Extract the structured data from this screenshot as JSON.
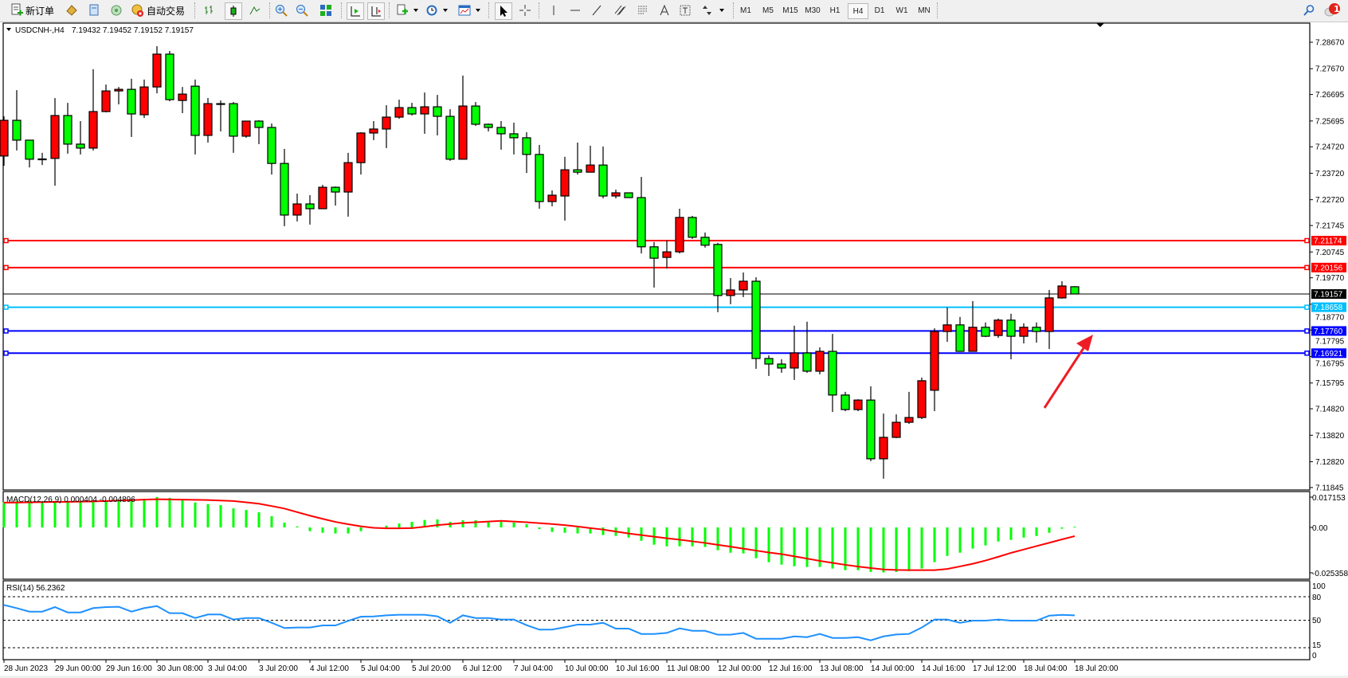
{
  "toolbar": {
    "new_order_label": "新订单",
    "auto_trading_label": "自动交易",
    "timeframes": [
      "M1",
      "M5",
      "M15",
      "M30",
      "H1",
      "H4",
      "D1",
      "W1",
      "MN"
    ],
    "active_timeframe": "H4",
    "notification_count": "1",
    "icons": [
      "new-order-icon",
      "market-watch-icon",
      "data-window-icon",
      "navigator-icon",
      "auto-trading-icon",
      "bar-chart-icon",
      "candlestick-icon",
      "line-chart-icon",
      "zoom-in-icon",
      "zoom-out-icon",
      "tile-windows-icon",
      "autoscroll-icon",
      "chart-shift-icon",
      "indicators-icon",
      "periods-icon",
      "templates-icon",
      "cursor-icon",
      "crosshair-icon",
      "vertical-line-icon",
      "horizontal-line-icon",
      "trendline-icon",
      "equidistant-channel-icon",
      "fibonacci-icon",
      "text-icon",
      "text-label-icon",
      "arrows-icon",
      "search-icon",
      "notification-icon"
    ]
  },
  "chart": {
    "symbol_header": "USDCNH-,H4",
    "ohlc_header": "7.19432 7.19452 7.19152 7.19157",
    "colors": {
      "bull": "#ff0000",
      "bear": "#00ff00",
      "macd_hist": "#00ff00",
      "macd_signal": "#ff0000",
      "rsi": "#1e90ff",
      "arrow": "#ee1c25"
    },
    "price_ticks": [
      "7.28670",
      "7.27670",
      "7.26695",
      "7.25695",
      "7.24720",
      "7.23720",
      "7.22720",
      "7.21745",
      "7.20745",
      "7.19770",
      "7.18770",
      "7.17795",
      "7.16795",
      "7.15795",
      "7.14820",
      "7.13820",
      "7.12820",
      "7.11845"
    ],
    "horizontal_lines": [
      {
        "price": "7.21174",
        "color": "#ff0000"
      },
      {
        "price": "7.20156",
        "color": "#ff0000"
      },
      {
        "price": "7.19157",
        "color": "#000000",
        "bid": true
      },
      {
        "price": "7.18658",
        "color": "#00bfff"
      },
      {
        "price": "7.17760",
        "color": "#0000ff"
      },
      {
        "price": "7.16921",
        "color": "#0000ff"
      }
    ],
    "time_labels": [
      "28 Jun 2023",
      "29 Jun 00:00",
      "29 Jun 16:00",
      "30 Jun 08:00",
      "3 Jul 04:00",
      "3 Jul 20:00",
      "4 Jul 12:00",
      "5 Jul 04:00",
      "5 Jul 20:00",
      "6 Jul 12:00",
      "7 Jul 04:00",
      "10 Jul 00:00",
      "10 Jul 16:00",
      "11 Jul 08:00",
      "12 Jul 00:00",
      "12 Jul 16:00",
      "13 Jul 08:00",
      "14 Jul 00:00",
      "14 Jul 16:00",
      "17 Jul 12:00",
      "18 Jul 04:00",
      "18 Jul 20:00"
    ]
  },
  "chart_data": [
    {
      "type": "candlestick",
      "title": "USDCNH-,H4",
      "timeframe": "H4",
      "last_bar_time": "18 Jul 20:00",
      "ylim": [
        7.11845,
        7.2867
      ],
      "ohlc": [
        [
          7.2437,
          7.2587,
          7.24,
          7.2572
        ],
        [
          7.2572,
          7.2686,
          7.2458,
          7.2497
        ],
        [
          7.2497,
          7.2497,
          7.2394,
          7.2425
        ],
        [
          7.2425,
          7.2449,
          7.2403,
          7.2426
        ],
        [
          7.2428,
          7.2656,
          7.2325,
          7.259
        ],
        [
          7.259,
          7.2638,
          7.2446,
          7.2482
        ],
        [
          7.2482,
          7.2569,
          7.2443,
          7.2467
        ],
        [
          7.2467,
          7.2765,
          7.2458,
          7.2605
        ],
        [
          7.2605,
          7.2707,
          7.2602,
          7.2683
        ],
        [
          7.2683,
          7.2698,
          7.2632,
          7.2689
        ],
        [
          7.2689,
          7.2729,
          7.2509,
          7.2596
        ],
        [
          7.2593,
          7.2726,
          7.2581,
          7.2698
        ],
        [
          7.2698,
          7.2852,
          7.2674,
          7.2822
        ],
        [
          7.2822,
          7.2834,
          7.2644,
          7.265
        ],
        [
          7.2647,
          7.2698,
          7.2599,
          7.2671
        ],
        [
          7.2701,
          7.2726,
          7.2443,
          7.2515
        ],
        [
          7.2515,
          7.2656,
          7.2488,
          7.2635
        ],
        [
          7.2635,
          7.2647,
          7.253,
          7.2635
        ],
        [
          7.2635,
          7.2641,
          7.2449,
          7.2512
        ],
        [
          7.2512,
          7.2569,
          7.2506,
          7.2569
        ],
        [
          7.2569,
          7.2572,
          7.2482,
          7.2545
        ],
        [
          7.2545,
          7.256,
          7.2367,
          7.2409
        ],
        [
          7.2409,
          7.2464,
          7.2172,
          7.2214
        ],
        [
          7.2214,
          7.2295,
          7.219,
          7.2256
        ],
        [
          7.2256,
          7.2289,
          7.2178,
          7.2238
        ],
        [
          7.2238,
          7.2328,
          7.2238,
          7.2319
        ],
        [
          7.2319,
          7.2322,
          7.225,
          7.2301
        ],
        [
          7.2301,
          7.2449,
          7.2208,
          7.2412
        ],
        [
          7.2412,
          7.2527,
          7.2367,
          7.2524
        ],
        [
          7.2524,
          7.2569,
          7.2497,
          7.2539
        ],
        [
          7.2539,
          7.2629,
          7.2467,
          7.2584
        ],
        [
          7.2584,
          7.265,
          7.2578,
          7.262
        ],
        [
          7.262,
          7.2638,
          7.259,
          7.2596
        ],
        [
          7.2596,
          7.2677,
          7.2521,
          7.2623
        ],
        [
          7.2623,
          7.2668,
          7.2515,
          7.2587
        ],
        [
          7.2587,
          7.2614,
          7.2419,
          7.2425
        ],
        [
          7.2425,
          7.2741,
          7.2425,
          7.2626
        ],
        [
          7.2626,
          7.2641,
          7.2551,
          7.2557
        ],
        [
          7.2557,
          7.256,
          7.253,
          7.2545
        ],
        [
          7.2545,
          7.2569,
          7.2461,
          7.2521
        ],
        [
          7.2521,
          7.2563,
          7.2443,
          7.2506
        ],
        [
          7.2506,
          7.2527,
          7.2373,
          7.2443
        ],
        [
          7.2443,
          7.2479,
          7.2238,
          7.2265
        ],
        [
          7.2265,
          7.2307,
          7.2247,
          7.2289
        ],
        [
          7.2286,
          7.2434,
          7.2193,
          7.2385
        ],
        [
          7.2385,
          7.2488,
          7.2367,
          7.2376
        ],
        [
          7.2376,
          7.2476,
          7.2376,
          7.2403
        ],
        [
          7.2403,
          7.2473,
          7.2277,
          7.2286
        ],
        [
          7.2286,
          7.231,
          7.2277,
          7.2298
        ],
        [
          7.2298,
          7.2298,
          7.228,
          7.228
        ],
        [
          7.228,
          7.2358,
          7.2069,
          7.2094
        ],
        [
          7.2094,
          7.2112,
          7.194,
          7.2051
        ],
        [
          7.2054,
          7.2118,
          7.2012,
          7.2075
        ],
        [
          7.2075,
          7.2238,
          7.2069,
          7.2205
        ],
        [
          7.2205,
          7.2211,
          7.2124,
          7.213
        ],
        [
          7.213,
          7.2148,
          7.2091,
          7.21
        ],
        [
          7.2103,
          7.2109,
          7.1847,
          7.191
        ],
        [
          7.191,
          7.1976,
          7.1877,
          7.1931
        ],
        [
          7.1931,
          7.1997,
          7.1904,
          7.1964
        ],
        [
          7.1964,
          7.1979,
          7.1633,
          7.1672
        ],
        [
          7.1672,
          7.1684,
          7.1606,
          7.1651
        ],
        [
          7.1651,
          7.1669,
          7.1618,
          7.1636
        ],
        [
          7.1636,
          7.1796,
          7.1591,
          7.1693
        ],
        [
          7.1693,
          7.1811,
          7.1618,
          7.1624
        ],
        [
          7.1624,
          7.1714,
          7.1612,
          7.1699
        ],
        [
          7.1699,
          7.1765,
          7.147,
          7.1534
        ],
        [
          7.1534,
          7.1546,
          7.1473,
          7.1479
        ],
        [
          7.1479,
          7.1518,
          7.1473,
          7.1515
        ],
        [
          7.1515,
          7.1567,
          7.1284,
          7.1293
        ],
        [
          7.1293,
          7.1464,
          7.1218,
          7.1374
        ],
        [
          7.1374,
          7.1461,
          7.1371,
          7.1431
        ],
        [
          7.1431,
          7.1546,
          7.1425,
          7.1449
        ],
        [
          7.1449,
          7.16,
          7.1443,
          7.1588
        ],
        [
          7.1552,
          7.1786,
          7.1473,
          7.1774
        ],
        [
          7.1774,
          7.1865,
          7.1735,
          7.1799
        ],
        [
          7.1799,
          7.1829,
          7.1699,
          7.1699
        ],
        [
          7.1699,
          7.1889,
          7.1699,
          7.179
        ],
        [
          7.179,
          7.1808,
          7.1753,
          7.1756
        ],
        [
          7.1759,
          7.1823,
          7.175,
          7.1817
        ],
        [
          7.1817,
          7.1841,
          7.1669,
          7.1756
        ],
        [
          7.1756,
          7.1805,
          7.1729,
          7.179
        ],
        [
          7.179,
          7.1808,
          7.1732,
          7.1774
        ],
        [
          7.1774,
          7.1931,
          7.1708,
          7.1901
        ],
        [
          7.1901,
          7.1964,
          7.1898,
          7.1946
        ],
        [
          7.19432,
          7.19452,
          7.19152,
          7.19157
        ]
      ]
    },
    {
      "type": "bar",
      "title": "MACD(12,26,9) 0.000404 -0.004896",
      "label": "MACD(12,26,9)",
      "current_values": "0.000404 -0.004896",
      "ylim": [
        -0.025358,
        0.017153
      ],
      "axis_labels": [
        "0.017153",
        "0.00",
        "-0.025358"
      ],
      "histogram": [
        0.0143,
        0.0148,
        0.0151,
        0.0143,
        0.0143,
        0.0143,
        0.0143,
        0.0143,
        0.0148,
        0.0151,
        0.0155,
        0.0161,
        0.0171,
        0.0166,
        0.0154,
        0.014,
        0.0131,
        0.0125,
        0.0107,
        0.0098,
        0.0085,
        0.0063,
        0.0027,
        0.0006,
        -0.0021,
        -0.003,
        -0.0034,
        -0.0034,
        -0.0021,
        0.0,
        0.001,
        0.0022,
        0.0031,
        0.0042,
        0.0045,
        0.0031,
        0.004,
        0.004,
        0.0031,
        0.0031,
        0.0027,
        0.0018,
        -0.0009,
        -0.0025,
        -0.003,
        -0.0034,
        -0.0034,
        -0.0043,
        -0.0048,
        -0.0057,
        -0.0075,
        -0.0097,
        -0.0106,
        -0.0106,
        -0.0106,
        -0.011,
        -0.0128,
        -0.0142,
        -0.0146,
        -0.0173,
        -0.0195,
        -0.0209,
        -0.0218,
        -0.0222,
        -0.0222,
        -0.0231,
        -0.024,
        -0.024,
        -0.025,
        -0.0253,
        -0.025,
        -0.0245,
        -0.0231,
        -0.0195,
        -0.016,
        -0.0142,
        -0.0119,
        -0.0101,
        -0.0079,
        -0.007,
        -0.0057,
        -0.0048,
        -0.003,
        -0.0007,
        0.000404
      ],
      "signal": [
        0.0139,
        0.014,
        0.0141,
        0.0142,
        0.0143,
        0.0144,
        0.0145,
        0.0146,
        0.0148,
        0.0151,
        0.0153,
        0.0156,
        0.0158,
        0.0157,
        0.0156,
        0.0155,
        0.0154,
        0.0151,
        0.0148,
        0.0141,
        0.0133,
        0.012,
        0.0106,
        0.0086,
        0.0066,
        0.0048,
        0.0031,
        0.0018,
        0.0006,
        -0.0002,
        -0.0005,
        -0.0005,
        -0.0004,
        0.0004,
        0.0013,
        0.0019,
        0.0025,
        0.0029,
        0.0033,
        0.0037,
        0.0033,
        0.0029,
        0.0024,
        0.0019,
        0.0013,
        0.0005,
        -0.0004,
        -0.0012,
        -0.0023,
        -0.0034,
        -0.0043,
        -0.0052,
        -0.0061,
        -0.0069,
        -0.0078,
        -0.0087,
        -0.0098,
        -0.0108,
        -0.0119,
        -0.013,
        -0.0141,
        -0.015,
        -0.0162,
        -0.0175,
        -0.0188,
        -0.0199,
        -0.021,
        -0.022,
        -0.0228,
        -0.0236,
        -0.0239,
        -0.024,
        -0.024,
        -0.024,
        -0.0233,
        -0.0219,
        -0.0204,
        -0.0186,
        -0.0165,
        -0.0143,
        -0.0124,
        -0.0105,
        -0.0086,
        -0.0067,
        -0.004896
      ]
    },
    {
      "type": "line",
      "title": "RSI(14) 56.2362",
      "label": "RSI(14)",
      "current_value": "56.2362",
      "ylim": [
        0,
        100
      ],
      "axis_labels": [
        "100",
        "80",
        "50",
        "15",
        "0"
      ],
      "levels": [
        80,
        50,
        15
      ],
      "values": [
        69.5,
        65.5,
        61.0,
        61.0,
        66.8,
        60.0,
        60.0,
        65.5,
        66.8,
        67.2,
        61.0,
        65.5,
        68.1,
        59.0,
        59.0,
        52.9,
        57.4,
        57.4,
        50.9,
        52.9,
        52.9,
        46.8,
        40.1,
        40.8,
        40.8,
        43.4,
        43.4,
        49.2,
        54.6,
        54.9,
        56.3,
        57.0,
        57.0,
        57.0,
        55.0,
        46.8,
        56.3,
        52.9,
        52.9,
        50.9,
        50.9,
        43.8,
        38.1,
        38.1,
        41.2,
        44.5,
        44.5,
        46.8,
        39.4,
        39.4,
        32.6,
        32.6,
        33.9,
        39.7,
        36.6,
        36.6,
        31.6,
        31.6,
        33.9,
        26.5,
        26.5,
        26.5,
        29.5,
        28.5,
        32.6,
        27.5,
        27.5,
        28.5,
        24.5,
        29.5,
        31.9,
        32.6,
        40.8,
        50.9,
        50.9,
        46.8,
        49.5,
        49.5,
        50.9,
        49.5,
        49.5,
        49.5,
        55.9,
        56.9,
        56.2362
      ]
    }
  ]
}
